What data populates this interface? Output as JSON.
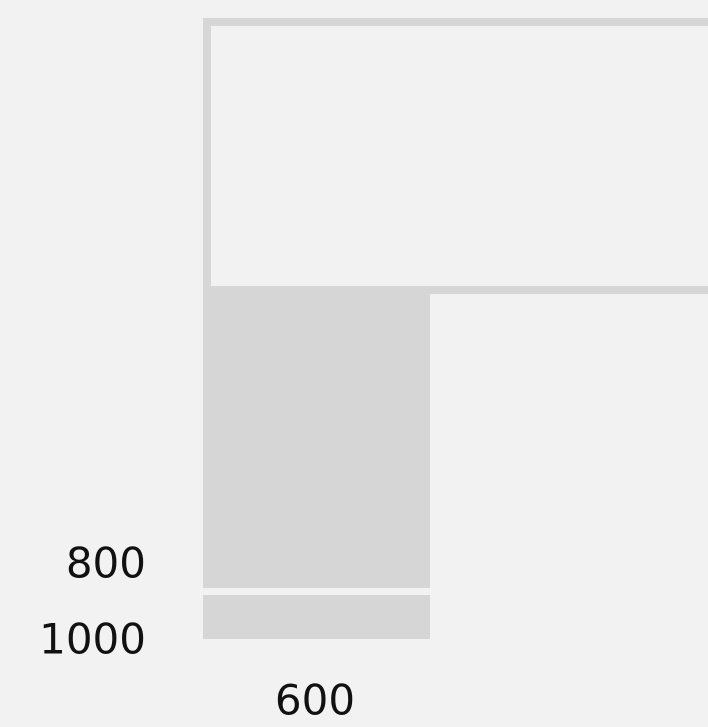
{
  "labels": [
    "800",
    "1000",
    "600"
  ]
}
